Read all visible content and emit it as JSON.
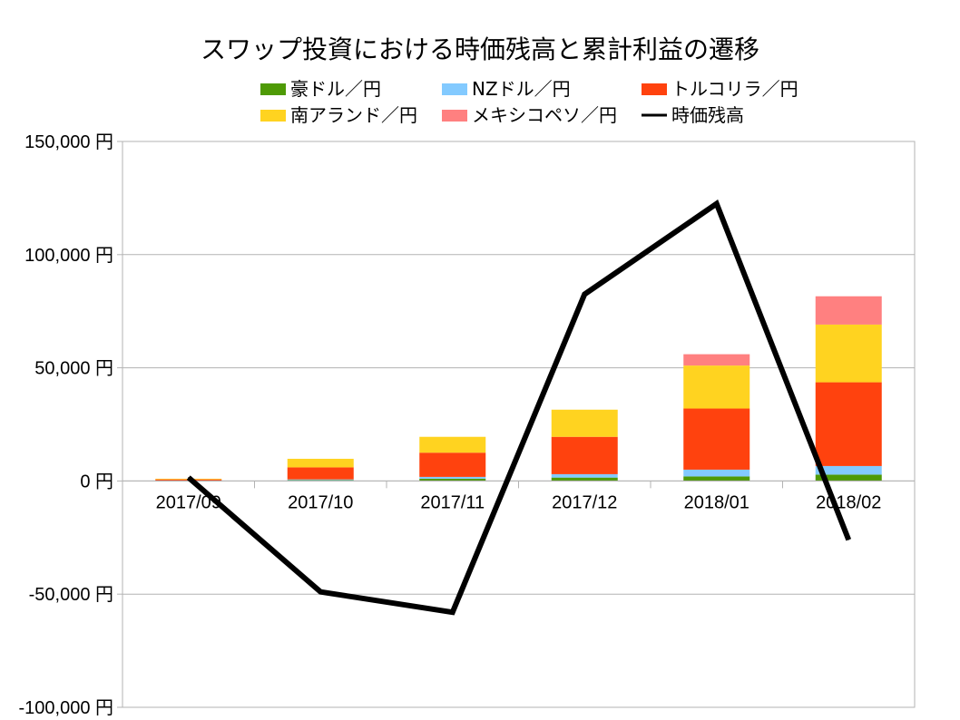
{
  "chart_data": {
    "type": "bar",
    "title": "スワップ投資における時価残高と累計利益の遷移",
    "categories": [
      "2017/09",
      "2017/10",
      "2017/11",
      "2017/12",
      "2018/01",
      "2018/02"
    ],
    "ylim": [
      -100000,
      150000
    ],
    "yticks": [
      {
        "value": 150000,
        "label": "150,000 円"
      },
      {
        "value": 100000,
        "label": "100,000 円"
      },
      {
        "value": 50000,
        "label": "50,000 円"
      },
      {
        "value": 0,
        "label": "0 円"
      },
      {
        "value": -50000,
        "label": "-50,000 円"
      },
      {
        "value": -100000,
        "label": "-100,000 円"
      }
    ],
    "series": [
      {
        "name": "豪ドル／円",
        "color": "#4e9a06",
        "values": [
          100,
          400,
          1000,
          1500,
          2000,
          2800
        ]
      },
      {
        "name": "NZドル／円",
        "color": "#83caff",
        "values": [
          100,
          300,
          800,
          1500,
          3000,
          3800
        ]
      },
      {
        "name": "トルコリラ／円",
        "color": "#ff420e",
        "values": [
          500,
          5300,
          10700,
          16500,
          27000,
          37000
        ]
      },
      {
        "name": "南アランド／円",
        "color": "#ffd320",
        "values": [
          300,
          3800,
          7000,
          12000,
          19000,
          25500
        ]
      },
      {
        "name": "メキシコペソ／円",
        "color": "#ff8080",
        "values": [
          0,
          0,
          0,
          0,
          5000,
          12500
        ]
      }
    ],
    "line": {
      "name": "時価残高",
      "color": "#000000",
      "values": [
        1500,
        -49000,
        -58000,
        82500,
        122500,
        -26000
      ]
    }
  }
}
